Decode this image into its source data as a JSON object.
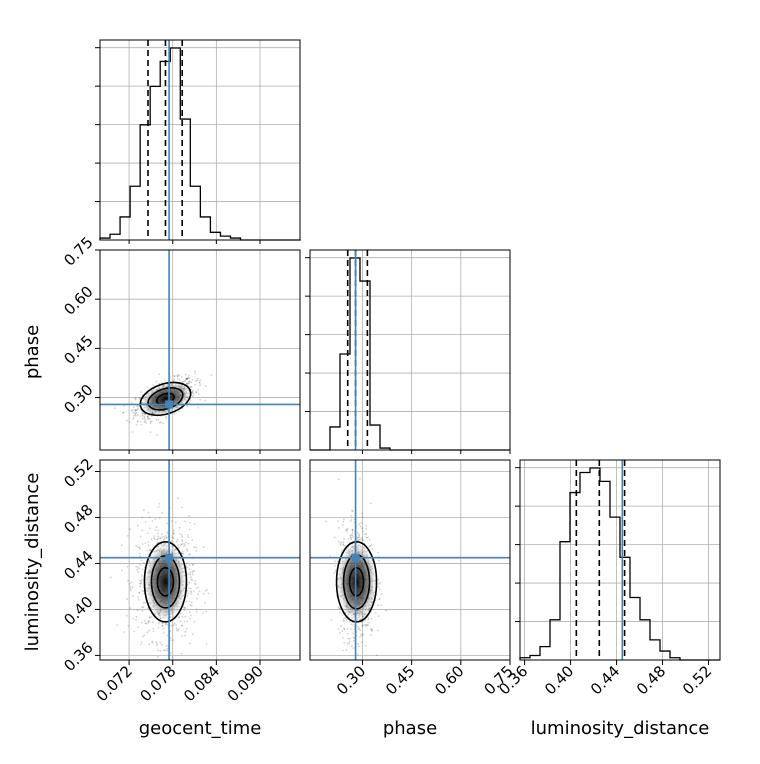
{
  "chart_data": {
    "type": "corner",
    "parameters": [
      "geocent_time",
      "phase",
      "luminosity_distance"
    ],
    "truths": [
      0.0775,
      0.279,
      0.445
    ],
    "truth_color": "#4682b4",
    "ranges": [
      [
        0.068,
        0.0955
      ],
      [
        0.14,
        0.75
      ],
      [
        0.356,
        0.53
      ]
    ],
    "ticks": [
      [
        0.072,
        0.078,
        0.084,
        0.09
      ],
      [
        0.3,
        0.45,
        0.6,
        0.75
      ],
      [
        0.36,
        0.4,
        0.44,
        0.48,
        0.52
      ]
    ],
    "tick_labels": [
      [
        "0.072",
        "0.078",
        "0.084",
        "0.090"
      ],
      [
        "0.30",
        "0.45",
        "0.60",
        "0.75"
      ],
      [
        "0.36",
        "0.40",
        "0.44",
        "0.48",
        "0.52"
      ]
    ],
    "x_labels": [
      "geocent_time",
      "phase",
      "luminosity_distance"
    ],
    "y_labels": [
      "",
      "phase",
      "luminosity_distance"
    ],
    "quantiles": [
      [
        0.0746,
        0.077,
        0.0793
      ],
      [
        0.255,
        0.279,
        0.315
      ],
      [
        0.405,
        0.425,
        0.447
      ]
    ],
    "histograms": [
      {
        "edges_start": 0.068,
        "bin_width": 0.00138,
        "counts": [
          1,
          3,
          12,
          28,
          60,
          80,
          93,
          100,
          63,
          28,
          12,
          4,
          2,
          1,
          0,
          0,
          0,
          0,
          0,
          0
        ]
      },
      {
        "edges_start": 0.14,
        "bin_width": 0.0305,
        "counts": [
          0,
          0,
          12,
          50,
          100,
          88,
          13,
          1,
          0,
          0,
          0,
          0,
          0,
          0,
          0,
          0,
          0,
          0,
          0,
          0
        ]
      },
      {
        "edges_start": 0.356,
        "bin_width": 0.0087,
        "counts": [
          1,
          2,
          6,
          18,
          53,
          75,
          84,
          86,
          80,
          64,
          46,
          28,
          18,
          9,
          4,
          1,
          0,
          0,
          0,
          0
        ]
      }
    ],
    "density_centers": {
      "phase_vs_geocent_time": [
        0.077,
        0.296
      ],
      "luminosity_distance_vs_geocent_time": [
        0.077,
        0.424
      ],
      "luminosity_distance_vs_phase": [
        0.282,
        0.424
      ]
    },
    "grid": true
  }
}
